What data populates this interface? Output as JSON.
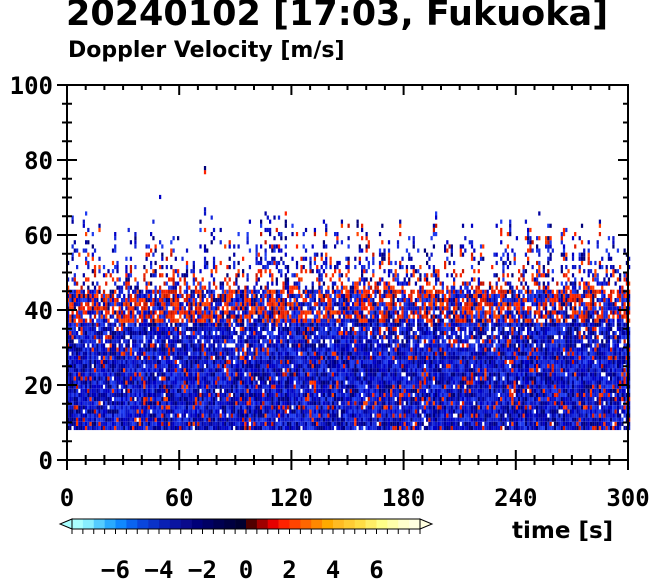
{
  "chart_data": {
    "type": "heatmap",
    "title": "20240102 [17:03, Fukuoka]",
    "subtitle": "Doppler Velocity [m/s]",
    "xlabel": "time [s]",
    "xlim": [
      0,
      300
    ],
    "ylim": [
      0,
      100
    ],
    "xticks": [
      0,
      60,
      120,
      180,
      240,
      300
    ],
    "yticks": [
      0,
      20,
      40,
      60,
      80,
      100
    ],
    "data_height_range": [
      8,
      85
    ],
    "colorbar": {
      "range": [
        -8,
        8
      ],
      "ticks": [
        -6,
        -4,
        -2,
        0,
        2,
        4,
        6
      ],
      "tick_labels": [
        "−6",
        "−4",
        "−2",
        "0",
        "2",
        "4",
        "6"
      ],
      "extend": "both"
    },
    "colors": {
      "negative_dominant": "#0a14c8",
      "positive_dominant": "#ff2200",
      "neutral": "#000060"
    }
  }
}
